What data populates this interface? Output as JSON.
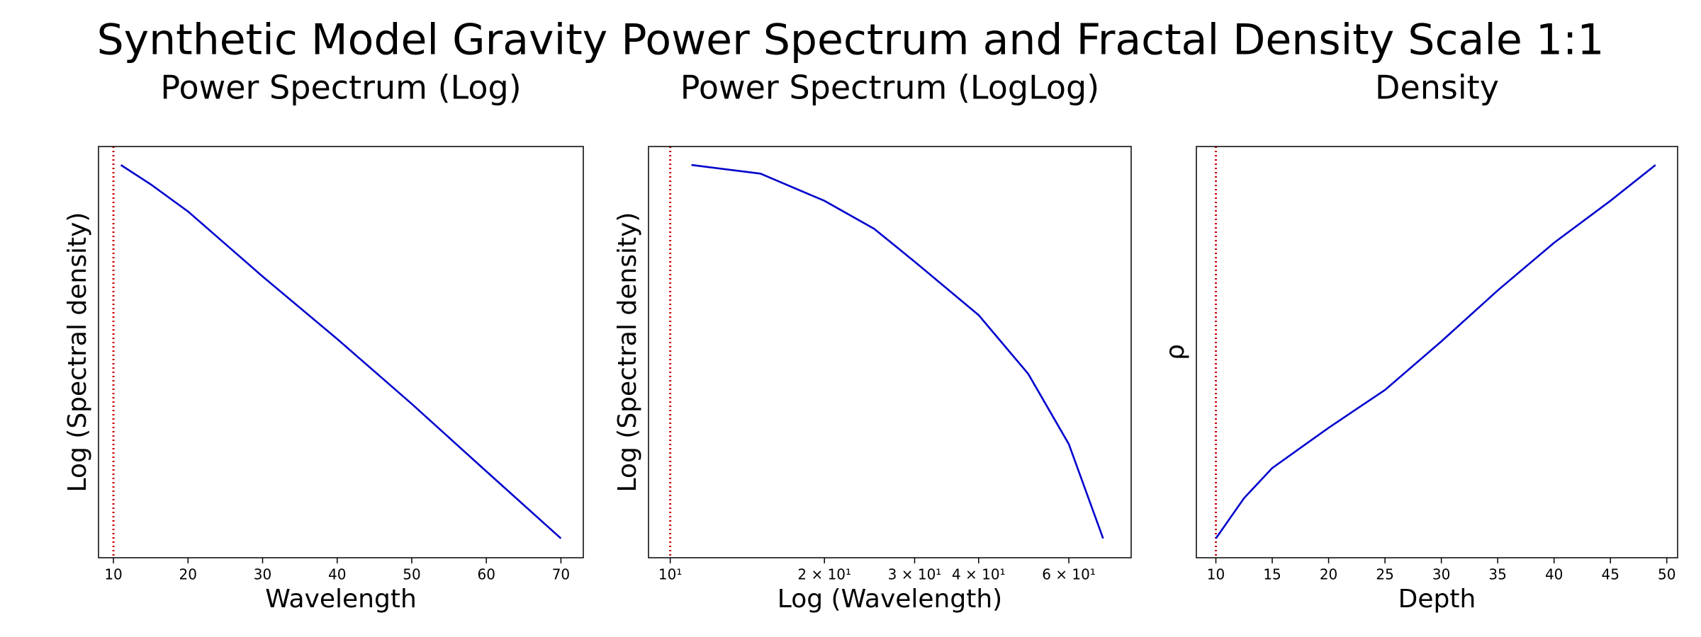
{
  "title": "Synthetic Model Gravity Power Spectrum and Fractal Density Scale 1:1",
  "chart_data": [
    {
      "type": "line",
      "title": "Power Spectrum (Log)",
      "xlabel": "Wavelength",
      "ylabel": "Log (Spectral density)",
      "xscale": "linear",
      "xlim": [
        8,
        73
      ],
      "ylim": [
        0,
        1
      ],
      "xticks": [
        10,
        20,
        30,
        40,
        50,
        60,
        70
      ],
      "x": [
        11,
        15,
        20,
        25,
        30,
        40,
        50,
        60,
        70
      ],
      "series": [
        {
          "color": "#0000cd",
          "values": [
            0.955,
            0.908,
            0.842,
            0.763,
            0.684,
            0.532,
            0.374,
            0.21,
            0.047
          ]
        }
      ],
      "vline": {
        "x": 10,
        "color": "#cc0000"
      }
    },
    {
      "type": "line",
      "title": "Power Spectrum (LogLog)",
      "xlabel": "Log (Wavelength)",
      "ylabel": "Log (Spectral density)",
      "xscale": "log",
      "xlim": [
        9.07,
        79.4
      ],
      "ylim": [
        0,
        1
      ],
      "xticks": [
        {
          "value": 10,
          "label": "10¹"
        },
        {
          "value": 20,
          "label": "2 × 10¹"
        },
        {
          "value": 30,
          "label": "3 × 10¹"
        },
        {
          "value": 40,
          "label": "4 × 10¹"
        },
        {
          "value": 60,
          "label": "6 × 10¹"
        }
      ],
      "x": [
        11,
        15,
        20,
        25,
        30,
        40,
        50,
        60,
        70
      ],
      "series": [
        {
          "color": "#0000cd",
          "values": [
            0.955,
            0.934,
            0.868,
            0.8,
            0.72,
            0.59,
            0.447,
            0.276,
            0.047
          ]
        }
      ],
      "vline": {
        "x": 10,
        "color": "#cc0000"
      }
    },
    {
      "type": "line",
      "title": "Density",
      "xlabel": "Depth",
      "ylabel": "ρ",
      "xscale": "linear",
      "xlim": [
        8.27,
        50.96
      ],
      "ylim": [
        0,
        1
      ],
      "xticks": [
        10,
        15,
        20,
        25,
        30,
        35,
        40,
        45,
        50
      ],
      "x": [
        10,
        12.5,
        15,
        20,
        25,
        30,
        35,
        40,
        45,
        49
      ],
      "series": [
        {
          "color": "#0000cd",
          "values": [
            0.047,
            0.145,
            0.218,
            0.316,
            0.408,
            0.526,
            0.65,
            0.766,
            0.868,
            0.955
          ]
        }
      ],
      "vline": {
        "x": 10,
        "color": "#cc0000"
      }
    }
  ]
}
